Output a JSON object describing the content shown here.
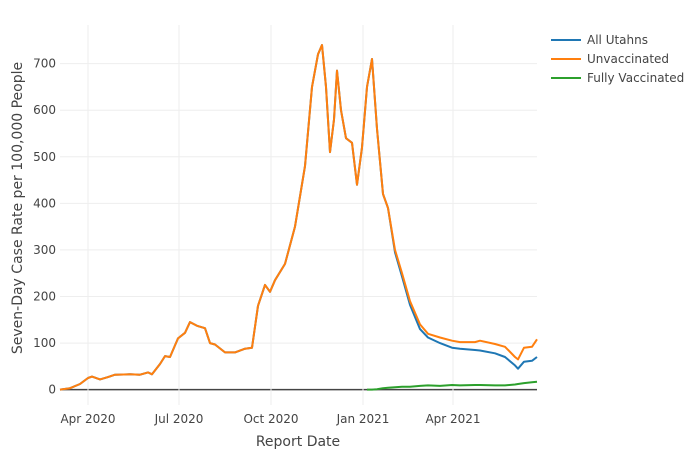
{
  "chart_data": {
    "type": "line",
    "title": "",
    "xlabel": "Report Date",
    "ylabel": "Seven-Day Case Rate per 100,000 People",
    "xlim": [
      "2020-03-04",
      "2021-06-24"
    ],
    "ylim": [
      -33,
      783
    ],
    "grid": true,
    "legend_position": "top-right",
    "x_ticks": [
      {
        "date": "2020-04-01",
        "label": "Apr 2020"
      },
      {
        "date": "2020-07-01",
        "label": "Jul 2020"
      },
      {
        "date": "2020-10-01",
        "label": "Oct 2020"
      },
      {
        "date": "2021-01-01",
        "label": "Jan 2021"
      },
      {
        "date": "2021-04-01",
        "label": "Apr 2021"
      }
    ],
    "y_ticks": [
      0,
      100,
      200,
      300,
      400,
      500,
      600,
      700
    ],
    "x": [
      "2020-03-04",
      "2020-03-14",
      "2020-03-24",
      "2020-04-01",
      "2020-04-05",
      "2020-04-13",
      "2020-04-21",
      "2020-04-28",
      "2020-05-13",
      "2020-05-23",
      "2020-05-31",
      "2020-06-04",
      "2020-06-12",
      "2020-06-17",
      "2020-06-22",
      "2020-06-30",
      "2020-07-07",
      "2020-07-12",
      "2020-07-19",
      "2020-07-27",
      "2020-08-01",
      "2020-08-06",
      "2020-08-16",
      "2020-08-26",
      "2020-09-05",
      "2020-09-12",
      "2020-09-18",
      "2020-09-25",
      "2020-09-30",
      "2020-10-05",
      "2020-10-15",
      "2020-10-25",
      "2020-11-04",
      "2020-11-11",
      "2020-11-17",
      "2020-11-21",
      "2020-11-25",
      "2020-11-29",
      "2020-12-03",
      "2020-12-06",
      "2020-12-10",
      "2020-12-15",
      "2020-12-21",
      "2020-12-26",
      "2020-12-31",
      "2021-01-05",
      "2021-01-10",
      "2021-01-15",
      "2021-01-21",
      "2021-01-26",
      "2021-02-02",
      "2021-02-09",
      "2021-02-17",
      "2021-02-27",
      "2021-03-07",
      "2021-03-19",
      "2021-03-31",
      "2021-04-08",
      "2021-04-23",
      "2021-04-28",
      "2021-05-13",
      "2021-05-23",
      "2021-06-02",
      "2021-06-05",
      "2021-06-11",
      "2021-06-19",
      "2021-06-24"
    ],
    "series": [
      {
        "name": "All Utahns",
        "color": "#1f77b4",
        "values": [
          0,
          3,
          12,
          25,
          28,
          22,
          27,
          32,
          33,
          32,
          37,
          33,
          55,
          72,
          70,
          110,
          122,
          145,
          137,
          132,
          100,
          97,
          80,
          80,
          88,
          90,
          180,
          225,
          210,
          235,
          270,
          350,
          480,
          650,
          720,
          740,
          650,
          510,
          580,
          685,
          600,
          540,
          530,
          440,
          520,
          650,
          710,
          560,
          420,
          390,
          295,
          243,
          182,
          130,
          112,
          100,
          90,
          88,
          85,
          84,
          78,
          70,
          52,
          45,
          60,
          62,
          70
        ]
      },
      {
        "name": "Unvaccinated",
        "color": "#ff7f0e",
        "values": [
          0,
          3,
          12,
          25,
          28,
          22,
          27,
          32,
          33,
          32,
          37,
          33,
          55,
          72,
          70,
          110,
          122,
          145,
          137,
          132,
          100,
          97,
          80,
          80,
          88,
          90,
          180,
          225,
          210,
          235,
          270,
          350,
          480,
          650,
          720,
          740,
          650,
          510,
          580,
          685,
          600,
          540,
          530,
          440,
          520,
          650,
          710,
          560,
          420,
          390,
          300,
          250,
          190,
          140,
          120,
          112,
          105,
          102,
          102,
          105,
          98,
          92,
          70,
          65,
          90,
          92,
          108
        ]
      },
      {
        "name": "Fully Vaccinated",
        "color": "#2ca02c",
        "values": [
          null,
          null,
          null,
          null,
          null,
          null,
          null,
          null,
          null,
          null,
          null,
          null,
          null,
          null,
          null,
          null,
          null,
          null,
          null,
          null,
          null,
          null,
          null,
          null,
          null,
          null,
          null,
          null,
          null,
          null,
          null,
          null,
          null,
          null,
          null,
          null,
          null,
          null,
          null,
          null,
          null,
          null,
          null,
          null,
          null,
          0,
          0,
          1,
          3,
          4,
          5,
          6,
          6,
          8,
          9,
          8,
          10,
          9,
          10,
          10,
          9,
          9,
          11,
          12,
          14,
          16,
          17
        ]
      }
    ]
  }
}
